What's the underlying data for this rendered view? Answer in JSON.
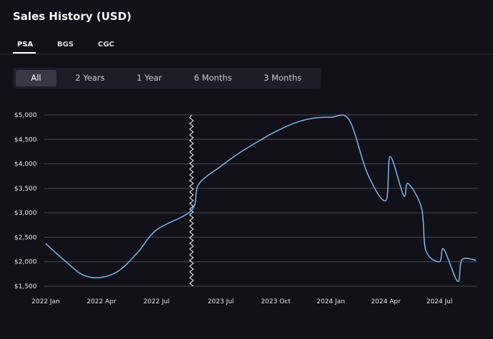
{
  "header": {
    "title": "Sales History (USD)"
  },
  "grade_tabs": [
    {
      "label": "PSA",
      "active": true
    },
    {
      "label": "BGS",
      "active": false
    },
    {
      "label": "CGC",
      "active": false
    }
  ],
  "time_ranges": [
    {
      "label": "All",
      "active": true
    },
    {
      "label": "2 Years",
      "active": false
    },
    {
      "label": "1 Year",
      "active": false
    },
    {
      "label": "6 Months",
      "active": false
    },
    {
      "label": "3 Months",
      "active": false
    }
  ],
  "colors": {
    "background": "#121018",
    "line": "#7ab8e8",
    "grid": "#4a4852",
    "axis_break": "#ffffff"
  },
  "chart_data": {
    "type": "line",
    "title": "",
    "xlabel": "",
    "ylabel": "",
    "ylim": [
      1500,
      5000
    ],
    "y_ticks": [
      {
        "value": 5000,
        "label": "$5,000"
      },
      {
        "value": 4500,
        "label": "$4,500"
      },
      {
        "value": 4000,
        "label": "$4,000"
      },
      {
        "value": 3500,
        "label": "$3,500"
      },
      {
        "value": 3000,
        "label": "$3,000"
      },
      {
        "value": 2500,
        "label": "$2,500"
      },
      {
        "value": 2000,
        "label": "$2,000"
      },
      {
        "value": 1500,
        "label": "$1,500"
      }
    ],
    "x_ticks": [
      "2022 Jan",
      "2022 Apr",
      "2022 Jul",
      "2023 Jul",
      "2023 Oct",
      "2024 Jan",
      "2024 Apr",
      "2024 Jul"
    ],
    "axis_break": {
      "between": [
        "2022 Jul",
        "2023 Jul"
      ]
    },
    "grid": true,
    "series": [
      {
        "points": [
          {
            "x": "2022 Jan",
            "y": 2370
          },
          {
            "x": "2022 Feb",
            "y": 2030
          },
          {
            "x": "2022 Mar",
            "y": 1730
          },
          {
            "x": "2022 Apr",
            "y": 1680
          },
          {
            "x": "2022 May",
            "y": 1830
          },
          {
            "x": "2022 Jun",
            "y": 2200
          },
          {
            "x": "2022 Jul",
            "y": 2650
          },
          {
            "x": "2022 Aug",
            "y": 3050
          },
          {
            "x": "2023 Jun",
            "y": 3580
          },
          {
            "x": "2023 Jul",
            "y": 3950
          },
          {
            "x": "2023 Aug",
            "y": 4220
          },
          {
            "x": "2023 Sep",
            "y": 4450
          },
          {
            "x": "2023 Oct",
            "y": 4660
          },
          {
            "x": "2023 Nov",
            "y": 4830
          },
          {
            "x": "2023 Dec",
            "y": 4930
          },
          {
            "x": "2024 Jan",
            "y": 4950
          },
          {
            "x": "2024 Feb",
            "y": 4900
          },
          {
            "x": "2024 Mar",
            "y": 3800
          },
          {
            "x": "2024 Apr",
            "y": 3250
          },
          {
            "x": "2024 Apr",
            "y": 4150
          },
          {
            "x": "2024 May",
            "y": 3350
          },
          {
            "x": "2024 May",
            "y": 3600
          },
          {
            "x": "2024 Jun",
            "y": 3100
          },
          {
            "x": "2024 Jun",
            "y": 2230
          },
          {
            "x": "2024 Jul",
            "y": 2000
          },
          {
            "x": "2024 Jul",
            "y": 2260
          },
          {
            "x": "2024 Aug",
            "y": 1600
          },
          {
            "x": "2024 Aug",
            "y": 2040
          },
          {
            "x": "2024 Sep",
            "y": 2030
          }
        ]
      }
    ]
  }
}
